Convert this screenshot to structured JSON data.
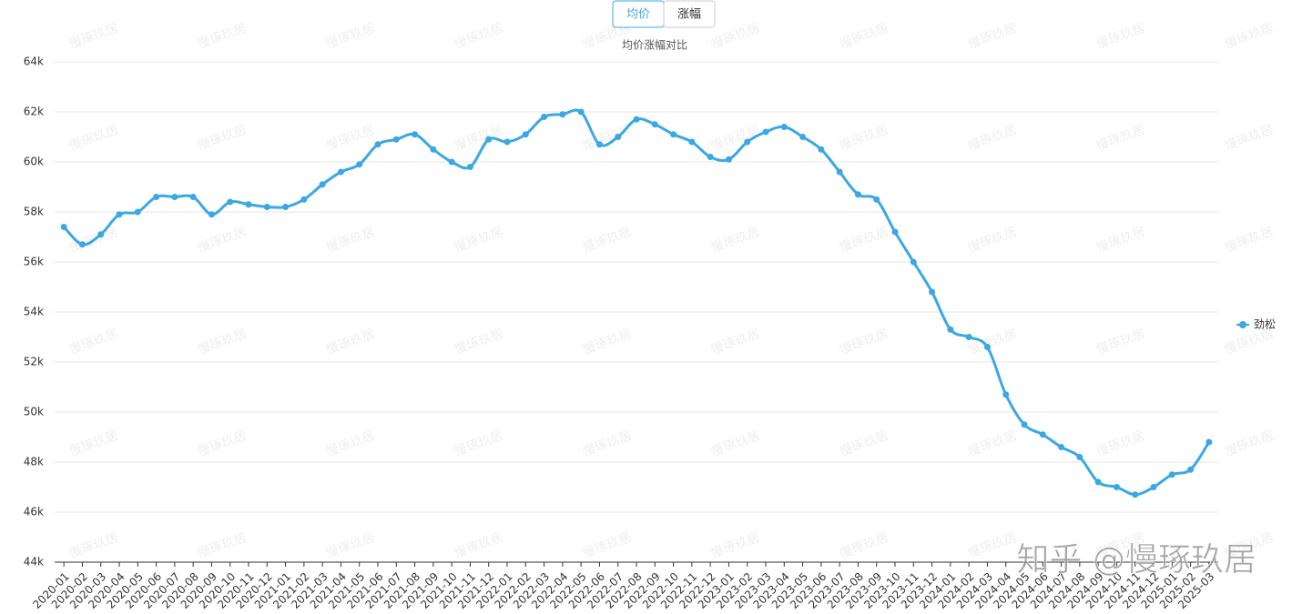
{
  "chart_data": {
    "type": "line",
    "buttons": [
      "均价",
      "涨幅"
    ],
    "active_button": 0,
    "title": "均价涨幅对比",
    "watermark": "慢琢玖居",
    "footer_watermark": "知乎 @慢琢玖居",
    "categories": [
      "2020-01",
      "2020-02",
      "2020-03",
      "2020-04",
      "2020-05",
      "2020-06",
      "2020-07",
      "2020-08",
      "2020-09",
      "2020-10",
      "2020-11",
      "2020-12",
      "2021-01",
      "2021-02",
      "2021-03",
      "2021-04",
      "2021-05",
      "2021-06",
      "2021-07",
      "2021-08",
      "2021-09",
      "2021-10",
      "2021-11",
      "2021-12",
      "2022-01",
      "2022-02",
      "2022-03",
      "2022-04",
      "2022-05",
      "2022-06",
      "2022-07",
      "2022-08",
      "2022-09",
      "2022-10",
      "2022-11",
      "2022-12",
      "2023-01",
      "2023-02",
      "2023-03",
      "2023-04",
      "2023-05",
      "2023-06",
      "2023-07",
      "2023-08",
      "2023-09",
      "2023-10",
      "2023-11",
      "2023-12",
      "2024-01",
      "2024-02",
      "2024-03",
      "2024-04",
      "2024-05",
      "2024-06",
      "2024-07",
      "2024-08",
      "2024-09",
      "2024-10",
      "2024-11",
      "2024-12",
      "2025-01",
      "2025-02",
      "2025-03"
    ],
    "series": [
      {
        "name": "劲松",
        "color": "#3aa8e4",
        "values": [
          57.4,
          56.7,
          57.1,
          57.9,
          58.0,
          58.6,
          58.6,
          58.6,
          57.9,
          58.4,
          58.3,
          58.2,
          58.2,
          58.5,
          59.1,
          59.6,
          59.9,
          60.7,
          60.9,
          61.1,
          60.5,
          60.0,
          59.8,
          60.9,
          60.8,
          61.1,
          61.8,
          61.9,
          62.0,
          60.7,
          61.0,
          61.7,
          61.5,
          61.1,
          60.8,
          60.2,
          60.1,
          60.8,
          61.2,
          61.4,
          61.0,
          60.5,
          59.6,
          58.7,
          58.5,
          57.2,
          56.0,
          54.8,
          53.3,
          53.0,
          52.6,
          50.7,
          49.5,
          49.1,
          48.6,
          48.2,
          47.2,
          47.0,
          46.7,
          47.0,
          47.5,
          47.7,
          48.8
        ]
      }
    ],
    "ylim": [
      44,
      64
    ],
    "yticks": [
      {
        "value": 44,
        "label": "44k"
      },
      {
        "value": 46,
        "label": "46k"
      },
      {
        "value": 48,
        "label": "48k"
      },
      {
        "value": 50,
        "label": "50k"
      },
      {
        "value": 52,
        "label": "52k"
      },
      {
        "value": 54,
        "label": "54k"
      },
      {
        "value": 56,
        "label": "56k"
      },
      {
        "value": 58,
        "label": "58k"
      },
      {
        "value": 60,
        "label": "60k"
      },
      {
        "value": 62,
        "label": "62k"
      },
      {
        "value": 64,
        "label": "64k"
      }
    ],
    "grid": true,
    "legend": "right",
    "smooth": true
  }
}
